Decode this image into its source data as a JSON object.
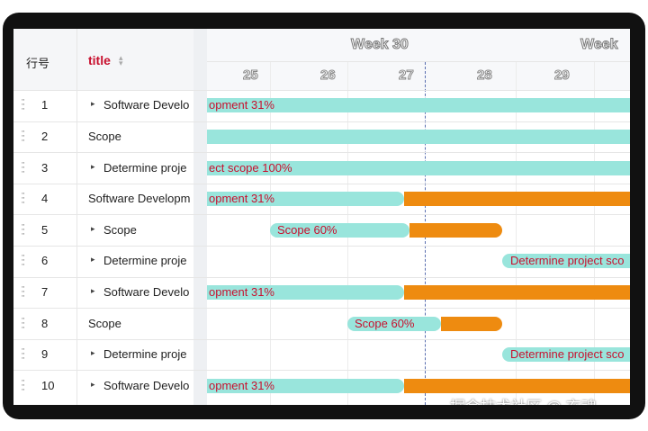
{
  "header": {
    "columns": [
      "行号",
      "title"
    ],
    "weeks": [
      "Week 30",
      "Week"
    ],
    "days": [
      "25",
      "26",
      "27",
      "28",
      "29"
    ]
  },
  "rows": [
    {
      "id": 1,
      "title": "Software Develo",
      "bar_label": "opment 31%"
    },
    {
      "id": 2,
      "title": "Scope"
    },
    {
      "id": 3,
      "title": "Determine proje",
      "bar_label": "ect scope 100%"
    },
    {
      "id": 4,
      "title": "Software Developm",
      "bar_label": "opment 31%"
    },
    {
      "id": 5,
      "title": "Scope",
      "bar_label": "Scope 60%"
    },
    {
      "id": 6,
      "title": "Determine proje",
      "bar_label": "Determine project sco"
    },
    {
      "id": 7,
      "title": "Software Develo",
      "bar_label": "opment 31%"
    },
    {
      "id": 8,
      "title": "Scope",
      "bar_label": "Scope 60%"
    },
    {
      "id": 9,
      "title": "Determine proje",
      "bar_label": "Determine project sco"
    },
    {
      "id": 10,
      "title": "Software Develo",
      "bar_label": "opment 31%"
    }
  ],
  "watermark": "掘金技术社区 @ 玄魂"
}
